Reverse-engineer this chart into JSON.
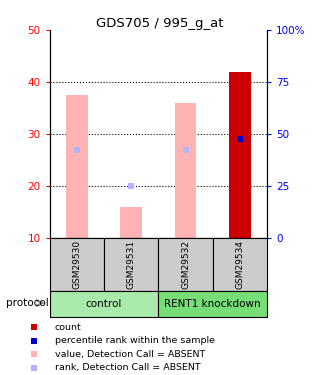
{
  "title": "GDS705 / 995_g_at",
  "samples": [
    "GSM29530",
    "GSM29531",
    "GSM29532",
    "GSM29534"
  ],
  "ylim_left": [
    10,
    50
  ],
  "ylim_right": [
    0,
    100
  ],
  "yticks_left": [
    10,
    20,
    30,
    40,
    50
  ],
  "yticks_right": [
    0,
    25,
    50,
    75,
    100
  ],
  "yticklabels_right": [
    "0",
    "25",
    "50",
    "75",
    "100%"
  ],
  "bar_values_absent": [
    37.5,
    16.0,
    36.0,
    42.0
  ],
  "rank_absent": [
    27.0,
    20.0,
    27.0,
    null
  ],
  "count_value": [
    null,
    null,
    null,
    42.0
  ],
  "rank_present": [
    null,
    null,
    null,
    29.0
  ],
  "pink_color": "#ffb3b3",
  "lightblue_color": "#b3b3ff",
  "red_color": "#cc0000",
  "blue_color": "#0000cc",
  "sample_bg": "#cccccc",
  "group_bg_control": "#aaeaaa",
  "group_bg_knockdown": "#77dd77",
  "group_info": [
    [
      "control",
      0,
      2
    ],
    [
      "RENT1 knockdown",
      2,
      4
    ]
  ]
}
